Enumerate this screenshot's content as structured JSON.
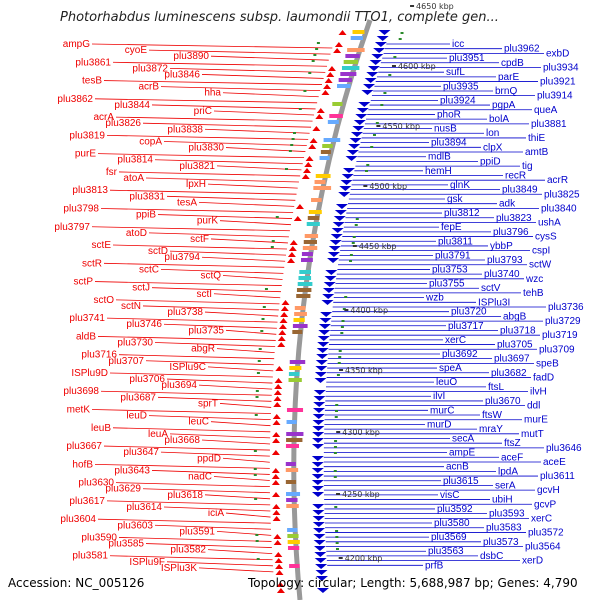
{
  "title": "Photorhabdus luminescens subsp. laumondii TTO1, complete gen...",
  "footer": {
    "accession": "Accession: NC_005126",
    "topology": "Topology: circular; Length: 5,688,987 bp; Genes: 4,790"
  },
  "colors": {
    "left_genes": "#ee0000",
    "right_genes": "#0000cc",
    "backbone": "#888888",
    "tick": "#2a8a2a"
  },
  "kbp_labels": [
    "4650 kbp",
    "4600 kbp",
    "4550 kbp",
    "4500 kbp",
    "4450 kbp",
    "4400 kbp",
    "4350 kbp",
    "4300 kbp",
    "4250 kbp",
    "4200 kbp"
  ],
  "left_labels": [
    "ampG",
    "cyoE",
    "plu3890",
    "plu3861",
    "plu3872",
    "plu3846",
    "tesB",
    "acrB",
    "hha",
    "plu3862",
    "plu3844",
    "priC",
    "acrA",
    "plu3826",
    "plu3838",
    "plu3819",
    "copA",
    "plu3830",
    "purE",
    "plu3814",
    "plu3821",
    "fsr",
    "atoA",
    "lpxH",
    "plu3813",
    "plu3831",
    "tesA",
    "plu3798",
    "ppiB",
    "purK",
    "plu3797",
    "atoD",
    "sctF",
    "sctE",
    "sctD",
    "plu3794",
    "sctR",
    "sctC",
    "sctQ",
    "sctP",
    "sctJ",
    "sctI",
    "sctO",
    "sctN",
    "plu3738",
    "plu3741",
    "plu3746",
    "plu3735",
    "aldB",
    "plu3730",
    "abgR",
    "plu3716",
    "plu3707",
    "ISPlu9C",
    "ISPlu9D",
    "plu3706",
    "plu3694",
    "plu3698",
    "plu3687",
    "sprT",
    "metK",
    "leuD",
    "leuC",
    "leuB",
    "leuA",
    "plu3668",
    "plu3667",
    "plu3647",
    "ppdD",
    "hofB",
    "plu3643",
    "nadC",
    "plu3630",
    "plu3629",
    "plu3618",
    "plu3617",
    "plu3614",
    "iciA",
    "plu3604",
    "plu3603",
    "plu3591",
    "plu3590",
    "plu3585",
    "plu3582",
    "plu3581",
    "ISPlu9F",
    "ISPlu3K"
  ],
  "right_labels": [
    "icc",
    "plu3962",
    "exbD",
    "plu3951",
    "cpdB",
    "plu3934",
    "sufL",
    "parE",
    "plu3921",
    "plu3935",
    "brnQ",
    "plu3914",
    "plu3924",
    "pgpA",
    "queA",
    "phoR",
    "bolA",
    "plu3881",
    "nusB",
    "lon",
    "thiE",
    "plu3894",
    "clpX",
    "amtB",
    "mdlB",
    "ppiD",
    "tig",
    "hemH",
    "recR",
    "acrR",
    "glnK",
    "plu3849",
    "plu3825",
    "gsk",
    "adk",
    "plu3840",
    "plu3812",
    "plu3823",
    "ushA",
    "fepE",
    "plu3796",
    "cysS",
    "plu3811",
    "ybbP",
    "cspI",
    "plu3791",
    "plu3793",
    "sctW",
    "plu3753",
    "plu3740",
    "wzc",
    "plu3755",
    "sctV",
    "tehB",
    "wzb",
    "ISPlu3I",
    "plu3736",
    "plu3720",
    "abgB",
    "plu3729",
    "plu3717",
    "plu3718",
    "plu3719",
    "xerC",
    "plu3705",
    "plu3709",
    "plu3692",
    "plu3697",
    "speB",
    "speA",
    "plu3682",
    "fadD",
    "leuO",
    "ftsL",
    "ilvH",
    "ilvI",
    "plu3670",
    "ddl",
    "murC",
    "ftsW",
    "murE",
    "murD",
    "mraY",
    "mutT",
    "secA",
    "ftsZ",
    "plu3646",
    "ampE",
    "aceF",
    "aceE",
    "acnB",
    "lpdA",
    "plu3611",
    "plu3615",
    "serA",
    "gcvH",
    "visC",
    "ubiH",
    "gcvP",
    "plu3592",
    "plu3593",
    "xerC",
    "plu3580",
    "plu3583",
    "plu3572",
    "plu3569",
    "plu3573",
    "plu3564",
    "plu3563",
    "dsbC",
    "xerD",
    "prfB"
  ]
}
